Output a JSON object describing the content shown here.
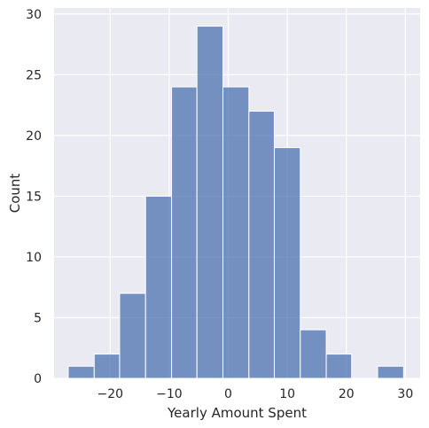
{
  "chart_data": {
    "type": "bar",
    "subtype": "histogram",
    "title": "",
    "xlabel": "Yearly Amount Spent",
    "ylabel": "Count",
    "xlim": [
      -29.5,
      32.5
    ],
    "ylim": [
      0,
      30.5
    ],
    "bins": [
      {
        "x0": -27.1,
        "x1": -22.7,
        "count": 1
      },
      {
        "x0": -22.7,
        "x1": -18.4,
        "count": 2
      },
      {
        "x0": -18.4,
        "x1": -14.0,
        "count": 7
      },
      {
        "x0": -14.0,
        "x1": -9.6,
        "count": 15
      },
      {
        "x0": -9.6,
        "x1": -5.3,
        "count": 24
      },
      {
        "x0": -5.3,
        "x1": -0.9,
        "count": 29
      },
      {
        "x0": -0.9,
        "x1": 3.5,
        "count": 24
      },
      {
        "x0": 3.5,
        "x1": 7.8,
        "count": 22
      },
      {
        "x0": 7.8,
        "x1": 12.2,
        "count": 19
      },
      {
        "x0": 12.2,
        "x1": 16.6,
        "count": 4
      },
      {
        "x0": 16.6,
        "x1": 20.9,
        "count": 2
      },
      {
        "x0": 20.9,
        "x1": 25.3,
        "count": 0
      },
      {
        "x0": 25.3,
        "x1": 29.7,
        "count": 1
      }
    ],
    "xticks": [
      -20,
      -10,
      0,
      10,
      20,
      30
    ],
    "xtick_labels": [
      "−20",
      "−10",
      "0",
      "10",
      "20",
      "30"
    ],
    "yticks": [
      0,
      5,
      10,
      15,
      20,
      25,
      30
    ],
    "ytick_labels": [
      "0",
      "5",
      "10",
      "15",
      "20",
      "25",
      "30"
    ],
    "grid": true,
    "colors": {
      "background": "#eaeaf2",
      "bar_fill": "#4c72b0",
      "bar_opacity": 0.75,
      "bar_edge": "#ffffff",
      "grid": "#ffffff"
    }
  }
}
